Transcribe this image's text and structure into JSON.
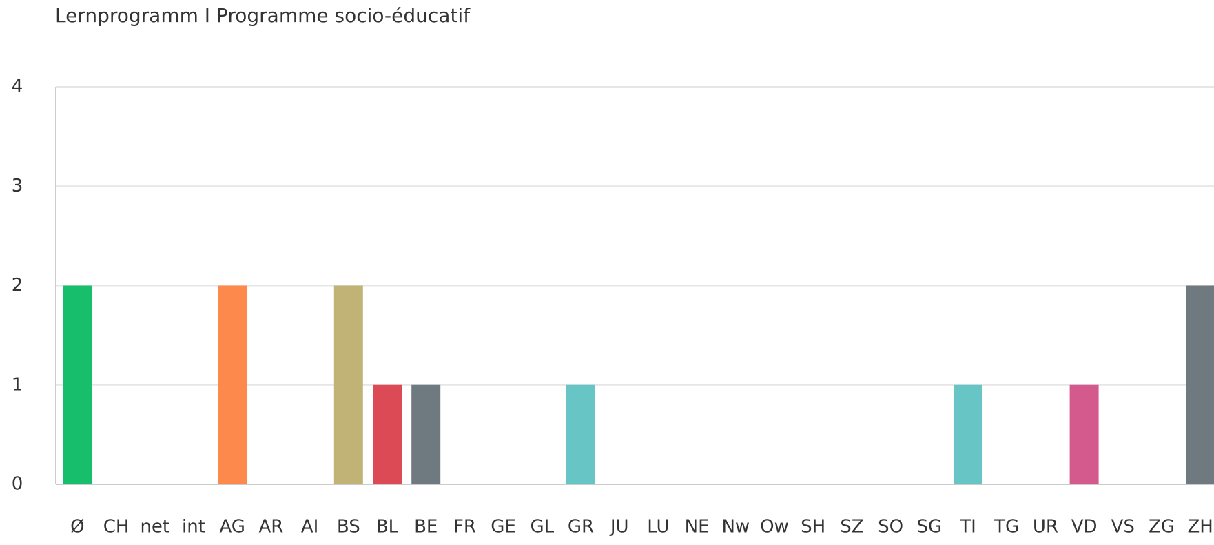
{
  "chart_data": {
    "type": "bar",
    "title": "Lernprogramm I Programme socio-éducatif",
    "categories": [
      "Ø",
      "CH",
      "net",
      "int",
      "AG",
      "AR",
      "AI",
      "BS",
      "BL",
      "BE",
      "FR",
      "GE",
      "GL",
      "GR",
      "JU",
      "LU",
      "NE",
      "Nw",
      "Ow",
      "SH",
      "SZ",
      "SO",
      "SG",
      "TI",
      "TG",
      "UR",
      "VD",
      "VS",
      "ZG",
      "ZH"
    ],
    "values": [
      2,
      0,
      0,
      0,
      2,
      0,
      0,
      2,
      1,
      1,
      0,
      0,
      0,
      1,
      0,
      0,
      0,
      0,
      0,
      0,
      0,
      0,
      0,
      1,
      0,
      0,
      1,
      0,
      0,
      2
    ],
    "colors": [
      "#17bf6c",
      "#17bf6c",
      "#17bf6c",
      "#17bf6c",
      "#fd8a4c",
      "#fd8a4c",
      "#fd8a4c",
      "#c1b276",
      "#dc4a56",
      "#6f7a80",
      "#6f7a80",
      "#6f7a80",
      "#6f7a80",
      "#67c5c5",
      "#67c5c5",
      "#67c5c5",
      "#67c5c5",
      "#67c5c5",
      "#67c5c5",
      "#67c5c5",
      "#67c5c5",
      "#67c5c5",
      "#67c5c5",
      "#67c5c5",
      "#67c5c5",
      "#67c5c5",
      "#d45a8d",
      "#d45a8d",
      "#d45a8d",
      "#6f7a80"
    ],
    "ylim": [
      0,
      4
    ],
    "yticks": [
      0,
      1,
      2,
      3,
      4
    ],
    "grid": true
  }
}
